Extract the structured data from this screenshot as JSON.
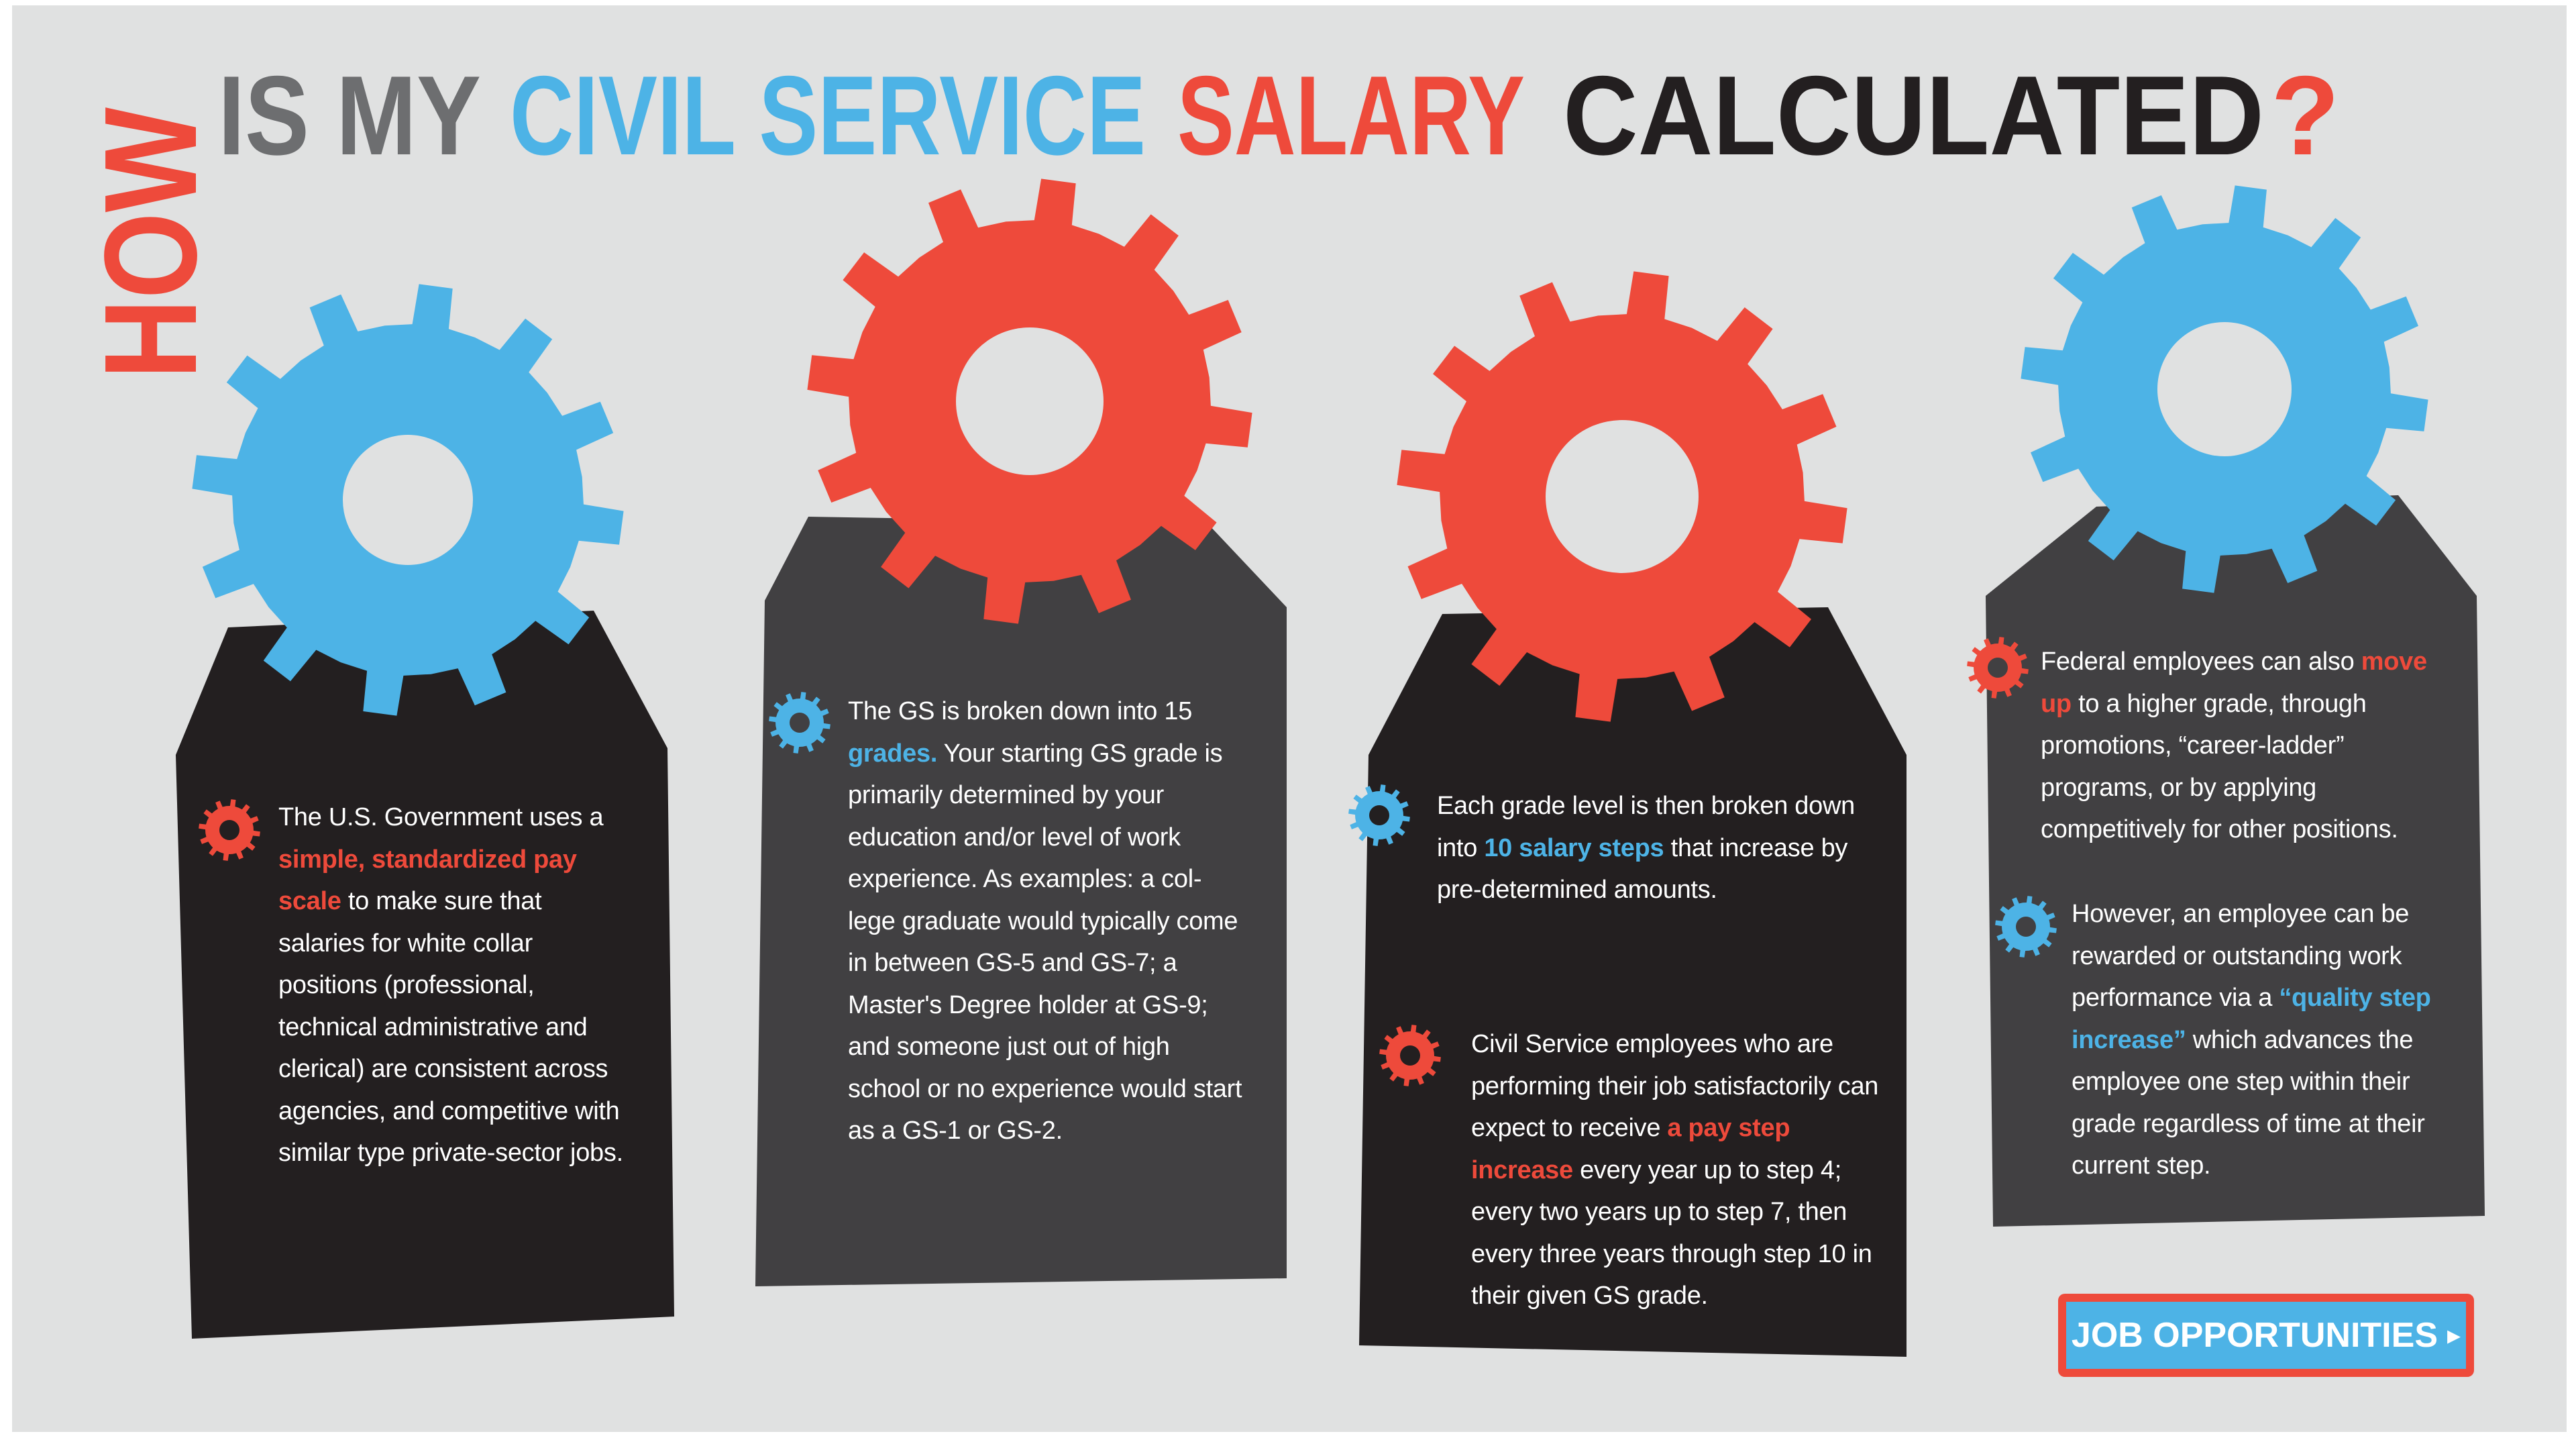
{
  "title": {
    "vertical": "HOW",
    "words": [
      "IS MY",
      "CIVIL SERVICE",
      "SALARY",
      "CALCULATED",
      "?"
    ]
  },
  "colors": {
    "background": "#e0e1e1",
    "red": "#ee4a3b",
    "blue": "#4db3e6",
    "black_panel": "#231f20",
    "gray_panel": "#414042",
    "gray_text": "#6d6e70"
  },
  "icons": [
    "gear-icon"
  ],
  "panels": [
    {
      "text": [
        {
          "t": "The U.S. Government uses a "
        },
        {
          "t": "simple, standardized pay scale",
          "hl": "red"
        },
        {
          "t": " to make sure that salaries for white collar positions (professional, technical administrative and clerical) are consistent across agencies, and competitive with similar type private-sector jobs."
        }
      ]
    },
    {
      "text": [
        {
          "t": "The GS is broken down into 15 "
        },
        {
          "t": "grades.",
          "hl": "blue"
        },
        {
          "t": " Your starting GS grade is primarily determined by your education and/or level of work experience. As examples: a col-lege graduate would typically come in between GS-5 and GS-7; a Master's Degree holder at GS-9; and someone just out of high school or no experience would start as a GS-1 or GS-2."
        }
      ]
    },
    {
      "text": [
        {
          "t": "Each grade level is then broken down into "
        },
        {
          "t": "10 salary steps",
          "hl": "blue"
        },
        {
          "t": " that increase by pre-determined amounts."
        }
      ],
      "text2": [
        {
          "t": "Civil Service employees who are performing their job satisfactorily can expect to receive "
        },
        {
          "t": "a pay step increase",
          "hl": "red"
        },
        {
          "t": " every year up to step 4; every two years up to step 7, then every three years through step 10 in their given GS grade."
        }
      ]
    },
    {
      "text": [
        {
          "t": "Federal employees can also "
        },
        {
          "t": "move up",
          "hl": "red"
        },
        {
          "t": " to a higher grade, through promotions, “career-ladder” programs, or by applying competitively for other positions."
        }
      ],
      "text2": [
        {
          "t": "However, an employee can be rewarded or outstanding work performance via a "
        },
        {
          "t": "“quality step increase”",
          "hl": "blue"
        },
        {
          "t": " which advances the employee one step within their grade regardless of time at their current step."
        }
      ]
    }
  ],
  "button": {
    "label": "JOB OPPORTUNITIES",
    "chevron": "▸"
  }
}
